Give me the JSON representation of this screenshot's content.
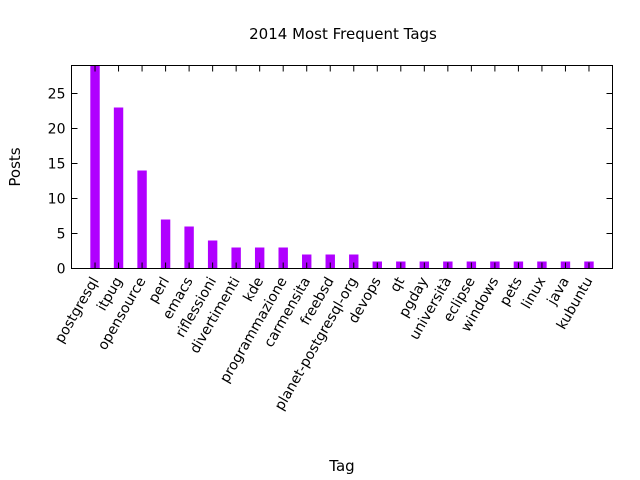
{
  "chart_data": {
    "type": "bar",
    "title": "2014 Most Frequent Tags",
    "xlabel": "Tag",
    "ylabel": "Posts",
    "ylim": [
      0,
      29
    ],
    "yticks": [
      0,
      5,
      10,
      15,
      20,
      25
    ],
    "grid": false,
    "legend": "none",
    "bar_color": "#b000ff",
    "categories": [
      "postgresql",
      "itpug",
      "opensource",
      "perl",
      "emacs",
      "riflessioni",
      "divertimenti",
      "kde",
      "programmazione",
      "carmensita",
      "freebsd",
      "planet-postgresql-org",
      "devops",
      "qt",
      "pgday",
      "università",
      "eclipse",
      "windows",
      "pets",
      "linux",
      "java",
      "kubuntu"
    ],
    "values": [
      29,
      23,
      14,
      7,
      6,
      4,
      3,
      3,
      3,
      2,
      2,
      2,
      1,
      1,
      1,
      1,
      1,
      1,
      1,
      1,
      1,
      1
    ]
  }
}
